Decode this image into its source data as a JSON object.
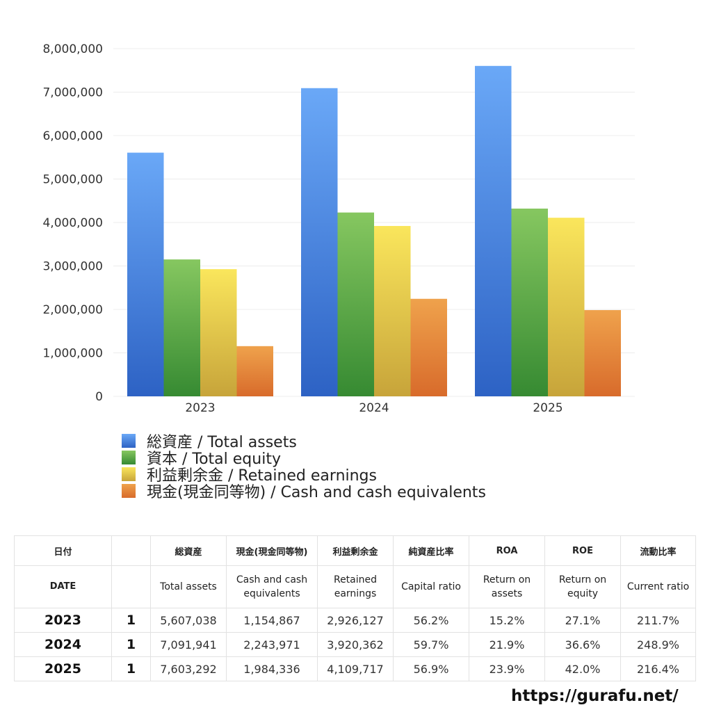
{
  "chart_data": {
    "type": "bar",
    "categories": [
      "2023",
      "2024",
      "2025"
    ],
    "ylim": [
      0,
      8000000
    ],
    "yticks": [
      "0",
      "1,000,000",
      "2,000,000",
      "3,000,000",
      "4,000,000",
      "5,000,000",
      "6,000,000",
      "7,000,000",
      "8,000,000"
    ],
    "grid": true,
    "legend_position": "bottom-left",
    "series": [
      {
        "name": "総資産 / Total assets",
        "values": [
          5607038,
          7091941,
          7603292
        ],
        "color_top": "#6aa8f7",
        "color_bottom": "#2d62c4"
      },
      {
        "name": "資本 / Total equity",
        "values": [
          3150000,
          4230000,
          4320000
        ],
        "color_top": "#86c760",
        "color_bottom": "#368a32"
      },
      {
        "name": "利益剰余金 / Retained earnings",
        "values": [
          2926127,
          3920362,
          4109717
        ],
        "color_top": "#fae65c",
        "color_bottom": "#c7a43a"
      },
      {
        "name": "現金(現金同等物) / Cash and cash equivalents",
        "values": [
          1154867,
          2243971,
          1984336
        ],
        "color_top": "#efa24c",
        "color_bottom": "#d86b2b"
      }
    ]
  },
  "table": {
    "headers_jp": [
      "日付",
      "",
      "総資産",
      "現金(現金同等物)",
      "利益剰余金",
      "純資産比率",
      "ROA",
      "ROE",
      "流動比率"
    ],
    "headers_en": [
      "DATE",
      "",
      "Total assets",
      "Cash and cash equivalents",
      "Retained earnings",
      "Capital ratio",
      "Return on assets",
      "Return on equity",
      "Current ratio"
    ],
    "rows": [
      [
        "2023",
        "1",
        "5,607,038",
        "1,154,867",
        "2,926,127",
        "56.2%",
        "15.2%",
        "27.1%",
        "211.7%"
      ],
      [
        "2024",
        "1",
        "7,091,941",
        "2,243,971",
        "3,920,362",
        "59.7%",
        "21.9%",
        "36.6%",
        "248.9%"
      ],
      [
        "2025",
        "1",
        "7,603,292",
        "1,984,336",
        "4,109,717",
        "56.9%",
        "23.9%",
        "42.0%",
        "216.4%"
      ]
    ]
  },
  "footer_url": "https://gurafu.net/"
}
